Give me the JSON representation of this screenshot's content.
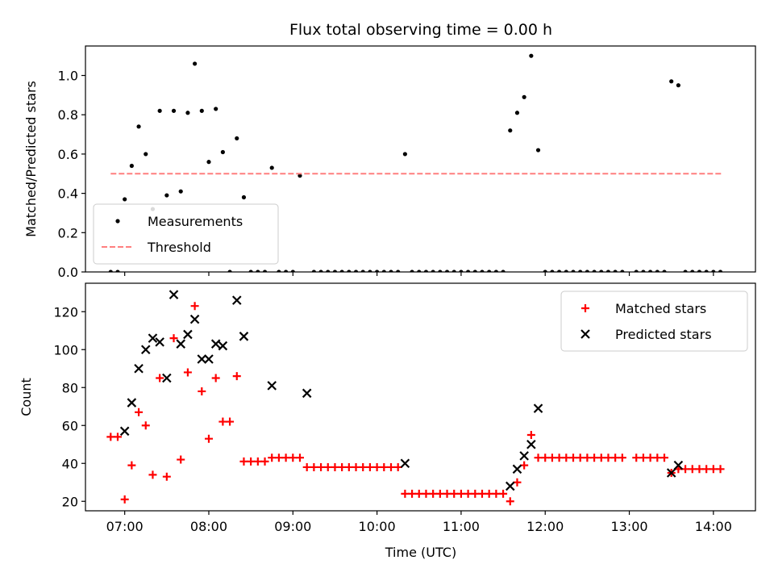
{
  "chart_data": [
    {
      "type": "scatter",
      "title": "Flux total observing time = 0.00 h",
      "xlabel": "",
      "ylabel": "Matched/Predicted stars",
      "x_type": "time",
      "xlim": [
        "06:32",
        "14:30"
      ],
      "ylim": [
        0,
        1.15
      ],
      "xticks": [
        "07:00",
        "08:00",
        "09:00",
        "10:00",
        "11:00",
        "12:00",
        "13:00",
        "14:00"
      ],
      "yticks": [
        0.0,
        0.2,
        0.4,
        0.6,
        0.8,
        1.0
      ],
      "legend": "lower-left",
      "legend_entries": [
        "Measurements",
        "Threshold"
      ],
      "series": [
        {
          "name": "Measurements",
          "marker": "dot",
          "color": "#000000",
          "points": [
            [
              "06:50",
              0
            ],
            [
              "06:55",
              0
            ],
            [
              "07:00",
              0.37
            ],
            [
              "07:05",
              0.54
            ],
            [
              "07:10",
              0.74
            ],
            [
              "07:15",
              0.6
            ],
            [
              "07:20",
              0.32
            ],
            [
              "07:25",
              0.82
            ],
            [
              "07:30",
              0.39
            ],
            [
              "07:35",
              0.82
            ],
            [
              "07:40",
              0.41
            ],
            [
              "07:45",
              0.81
            ],
            [
              "07:50",
              1.06
            ],
            [
              "07:55",
              0.82
            ],
            [
              "08:00",
              0.56
            ],
            [
              "08:05",
              0.83
            ],
            [
              "08:10",
              0.61
            ],
            [
              "08:15",
              0
            ],
            [
              "08:20",
              0.68
            ],
            [
              "08:25",
              0.38
            ],
            [
              "08:30",
              0
            ],
            [
              "08:35",
              0
            ],
            [
              "08:40",
              0
            ],
            [
              "08:45",
              0.53
            ],
            [
              "08:50",
              0
            ],
            [
              "08:55",
              0
            ],
            [
              "09:00",
              0
            ],
            [
              "09:05",
              0.49
            ],
            [
              "09:15",
              0
            ],
            [
              "09:20",
              0
            ],
            [
              "09:25",
              0
            ],
            [
              "09:30",
              0
            ],
            [
              "09:35",
              0
            ],
            [
              "09:40",
              0
            ],
            [
              "09:45",
              0
            ],
            [
              "09:50",
              0
            ],
            [
              "09:55",
              0
            ],
            [
              "10:00",
              0
            ],
            [
              "10:05",
              0
            ],
            [
              "10:10",
              0
            ],
            [
              "10:15",
              0
            ],
            [
              "10:20",
              0.6
            ],
            [
              "10:25",
              0
            ],
            [
              "10:30",
              0
            ],
            [
              "10:35",
              0
            ],
            [
              "10:40",
              0
            ],
            [
              "10:45",
              0
            ],
            [
              "10:50",
              0
            ],
            [
              "10:55",
              0
            ],
            [
              "11:00",
              0
            ],
            [
              "11:05",
              0
            ],
            [
              "11:10",
              0
            ],
            [
              "11:15",
              0
            ],
            [
              "11:20",
              0
            ],
            [
              "11:25",
              0
            ],
            [
              "11:30",
              0
            ],
            [
              "11:35",
              0.72
            ],
            [
              "11:40",
              0.81
            ],
            [
              "11:45",
              0.89
            ],
            [
              "11:50",
              1.1
            ],
            [
              "11:55",
              0.62
            ],
            [
              "12:00",
              0
            ],
            [
              "12:05",
              0
            ],
            [
              "12:10",
              0
            ],
            [
              "12:15",
              0
            ],
            [
              "12:20",
              0
            ],
            [
              "12:25",
              0
            ],
            [
              "12:30",
              0
            ],
            [
              "12:35",
              0
            ],
            [
              "12:40",
              0
            ],
            [
              "12:45",
              0
            ],
            [
              "12:50",
              0
            ],
            [
              "12:55",
              0
            ],
            [
              "13:05",
              0
            ],
            [
              "13:10",
              0
            ],
            [
              "13:15",
              0
            ],
            [
              "13:20",
              0
            ],
            [
              "13:25",
              0
            ],
            [
              "13:30",
              0.97
            ],
            [
              "13:35",
              0.95
            ],
            [
              "13:40",
              0
            ],
            [
              "13:45",
              0
            ],
            [
              "13:50",
              0
            ],
            [
              "13:55",
              0
            ],
            [
              "14:00",
              0
            ],
            [
              "14:05",
              0
            ]
          ]
        },
        {
          "name": "Threshold",
          "type": "line",
          "style": "dashed",
          "color": "#ff7f7f",
          "points": [
            [
              "06:50",
              0.5
            ],
            [
              "14:06",
              0.5
            ]
          ]
        }
      ]
    },
    {
      "type": "scatter",
      "title": "",
      "xlabel": "Time (UTC)",
      "ylabel": "Count",
      "x_type": "time",
      "xlim": [
        "06:32",
        "14:30"
      ],
      "ylim": [
        15,
        135
      ],
      "xticks": [
        "07:00",
        "08:00",
        "09:00",
        "10:00",
        "11:00",
        "12:00",
        "13:00",
        "14:00"
      ],
      "yticks": [
        20,
        40,
        60,
        80,
        100,
        120
      ],
      "legend": "top-right",
      "legend_entries": [
        "Matched stars",
        "Predicted stars"
      ],
      "series": [
        {
          "name": "Matched stars",
          "marker": "plus",
          "color": "#ff0000",
          "points": [
            [
              "06:50",
              54
            ],
            [
              "06:55",
              54
            ],
            [
              "07:00",
              21
            ],
            [
              "07:05",
              39
            ],
            [
              "07:10",
              67
            ],
            [
              "07:15",
              60
            ],
            [
              "07:20",
              34
            ],
            [
              "07:25",
              85
            ],
            [
              "07:30",
              33
            ],
            [
              "07:35",
              106
            ],
            [
              "07:40",
              42
            ],
            [
              "07:45",
              88
            ],
            [
              "07:50",
              123
            ],
            [
              "07:55",
              78
            ],
            [
              "08:00",
              53
            ],
            [
              "08:05",
              85
            ],
            [
              "08:10",
              62
            ],
            [
              "08:15",
              62
            ],
            [
              "08:20",
              86
            ],
            [
              "08:25",
              41
            ],
            [
              "08:30",
              41
            ],
            [
              "08:35",
              41
            ],
            [
              "08:40",
              41
            ],
            [
              "08:45",
              43
            ],
            [
              "08:50",
              43
            ],
            [
              "08:55",
              43
            ],
            [
              "09:00",
              43
            ],
            [
              "09:05",
              43
            ],
            [
              "09:10",
              38
            ],
            [
              "09:15",
              38
            ],
            [
              "09:20",
              38
            ],
            [
              "09:25",
              38
            ],
            [
              "09:30",
              38
            ],
            [
              "09:35",
              38
            ],
            [
              "09:40",
              38
            ],
            [
              "09:45",
              38
            ],
            [
              "09:50",
              38
            ],
            [
              "09:55",
              38
            ],
            [
              "10:00",
              38
            ],
            [
              "10:05",
              38
            ],
            [
              "10:10",
              38
            ],
            [
              "10:15",
              38
            ],
            [
              "10:20",
              24
            ],
            [
              "10:25",
              24
            ],
            [
              "10:30",
              24
            ],
            [
              "10:35",
              24
            ],
            [
              "10:40",
              24
            ],
            [
              "10:45",
              24
            ],
            [
              "10:50",
              24
            ],
            [
              "10:55",
              24
            ],
            [
              "11:00",
              24
            ],
            [
              "11:05",
              24
            ],
            [
              "11:10",
              24
            ],
            [
              "11:15",
              24
            ],
            [
              "11:20",
              24
            ],
            [
              "11:25",
              24
            ],
            [
              "11:30",
              24
            ],
            [
              "11:35",
              20
            ],
            [
              "11:40",
              30
            ],
            [
              "11:45",
              39
            ],
            [
              "11:50",
              55
            ],
            [
              "11:55",
              43
            ],
            [
              "12:00",
              43
            ],
            [
              "12:05",
              43
            ],
            [
              "12:10",
              43
            ],
            [
              "12:15",
              43
            ],
            [
              "12:20",
              43
            ],
            [
              "12:25",
              43
            ],
            [
              "12:30",
              43
            ],
            [
              "12:35",
              43
            ],
            [
              "12:40",
              43
            ],
            [
              "12:45",
              43
            ],
            [
              "12:50",
              43
            ],
            [
              "12:55",
              43
            ],
            [
              "13:05",
              43
            ],
            [
              "13:10",
              43
            ],
            [
              "13:15",
              43
            ],
            [
              "13:20",
              43
            ],
            [
              "13:25",
              43
            ],
            [
              "13:30",
              35
            ],
            [
              "13:35",
              37
            ],
            [
              "13:40",
              37
            ],
            [
              "13:45",
              37
            ],
            [
              "13:50",
              37
            ],
            [
              "13:55",
              37
            ],
            [
              "14:00",
              37
            ],
            [
              "14:05",
              37
            ]
          ]
        },
        {
          "name": "Predicted stars",
          "marker": "x",
          "color": "#000000",
          "points": [
            [
              "07:00",
              57
            ],
            [
              "07:05",
              72
            ],
            [
              "07:10",
              90
            ],
            [
              "07:15",
              100
            ],
            [
              "07:20",
              106
            ],
            [
              "07:25",
              104
            ],
            [
              "07:30",
              85
            ],
            [
              "07:35",
              129
            ],
            [
              "07:40",
              103
            ],
            [
              "07:45",
              108
            ],
            [
              "07:50",
              116
            ],
            [
              "07:55",
              95
            ],
            [
              "08:00",
              95
            ],
            [
              "08:05",
              103
            ],
            [
              "08:10",
              102
            ],
            [
              "08:20",
              126
            ],
            [
              "08:25",
              107
            ],
            [
              "08:45",
              81
            ],
            [
              "09:10",
              77
            ],
            [
              "10:20",
              40
            ],
            [
              "11:35",
              28
            ],
            [
              "11:40",
              37
            ],
            [
              "11:45",
              44
            ],
            [
              "11:50",
              50
            ],
            [
              "11:55",
              69
            ],
            [
              "13:30",
              35
            ],
            [
              "13:35",
              39
            ]
          ]
        }
      ]
    }
  ]
}
